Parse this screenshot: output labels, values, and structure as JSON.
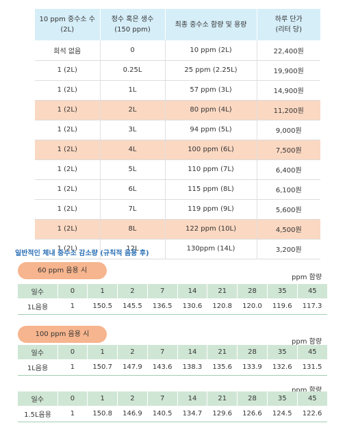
{
  "top_table": {
    "headers": [
      "10 ppm 중수소 수\n(2L)",
      "정수 혹은 생수\n(150 ppm)",
      "최종 중수소 함량 및 용량",
      "하루 단가\n(리터 당)"
    ],
    "rows": [
      [
        "희석 없음",
        "0",
        "10 ppm (2L)",
        "22,400원"
      ],
      [
        "1 (2L)",
        "0.25L",
        "25 ppm (2.25L)",
        "19,900원"
      ],
      [
        "1 (2L)",
        "1L",
        "57 ppm (3L)",
        "14,900원"
      ],
      [
        "1 (2L)",
        "2L",
        "80 ppm (4L)",
        "11,200원"
      ],
      [
        "1 (2L)",
        "3L",
        "94 ppm (5L)",
        "9,000원"
      ],
      [
        "1 (2L)",
        "4L",
        "100 ppm (6L)",
        "7,500원"
      ],
      [
        "1 (2L)",
        "5L",
        "110 ppm (7L)",
        "6,400원"
      ],
      [
        "1 (2L)",
        "6L",
        "115 ppm (8L)",
        "6,100원"
      ],
      [
        "1 (2L)",
        "7L",
        "119 ppm (9L)",
        "5,600원"
      ],
      [
        "1 (2L)",
        "8L",
        "122 ppm (10L)",
        "4,500원"
      ],
      [
        "1 (2L)",
        "12L",
        "130ppm (14L)",
        "3,200원"
      ]
    ],
    "highlighted_rows": [
      3,
      5,
      9
    ]
  },
  "section_title": "일반적인 체내 중수소 감소량 (규칙적 음용 후)",
  "tables": [
    {
      "pill": "60 ppm 음용 시",
      "unit": "ppm 함량",
      "headers": [
        "일수",
        "0",
        "1",
        "2",
        "7",
        "14",
        "21",
        "28",
        "35",
        "45"
      ],
      "row": [
        "1L음용",
        "1",
        "150.5",
        "145.5",
        "136.5",
        "130.6",
        "120.8",
        "120.0",
        "119.6",
        "117.3"
      ]
    },
    {
      "pill": "100 ppm 음용 시",
      "unit": "ppm 함량",
      "headers": [
        "일수",
        "0",
        "1",
        "2",
        "7",
        "14",
        "21",
        "28",
        "35",
        "45"
      ],
      "row": [
        "1L음용",
        "1",
        "150.7",
        "147.9",
        "143.6",
        "138.3",
        "135.6",
        "133.9",
        "132.6",
        "131.5"
      ]
    },
    {
      "pill": "",
      "unit": "ppm 함량",
      "headers": [
        "일수",
        "0",
        "1",
        "2",
        "7",
        "14",
        "21",
        "28",
        "35",
        "45"
      ],
      "row": [
        "1.5L음용",
        "1",
        "150.8",
        "146.9",
        "140.5",
        "134.7",
        "129.6",
        "126.6",
        "124.5",
        "122.6"
      ]
    }
  ]
}
